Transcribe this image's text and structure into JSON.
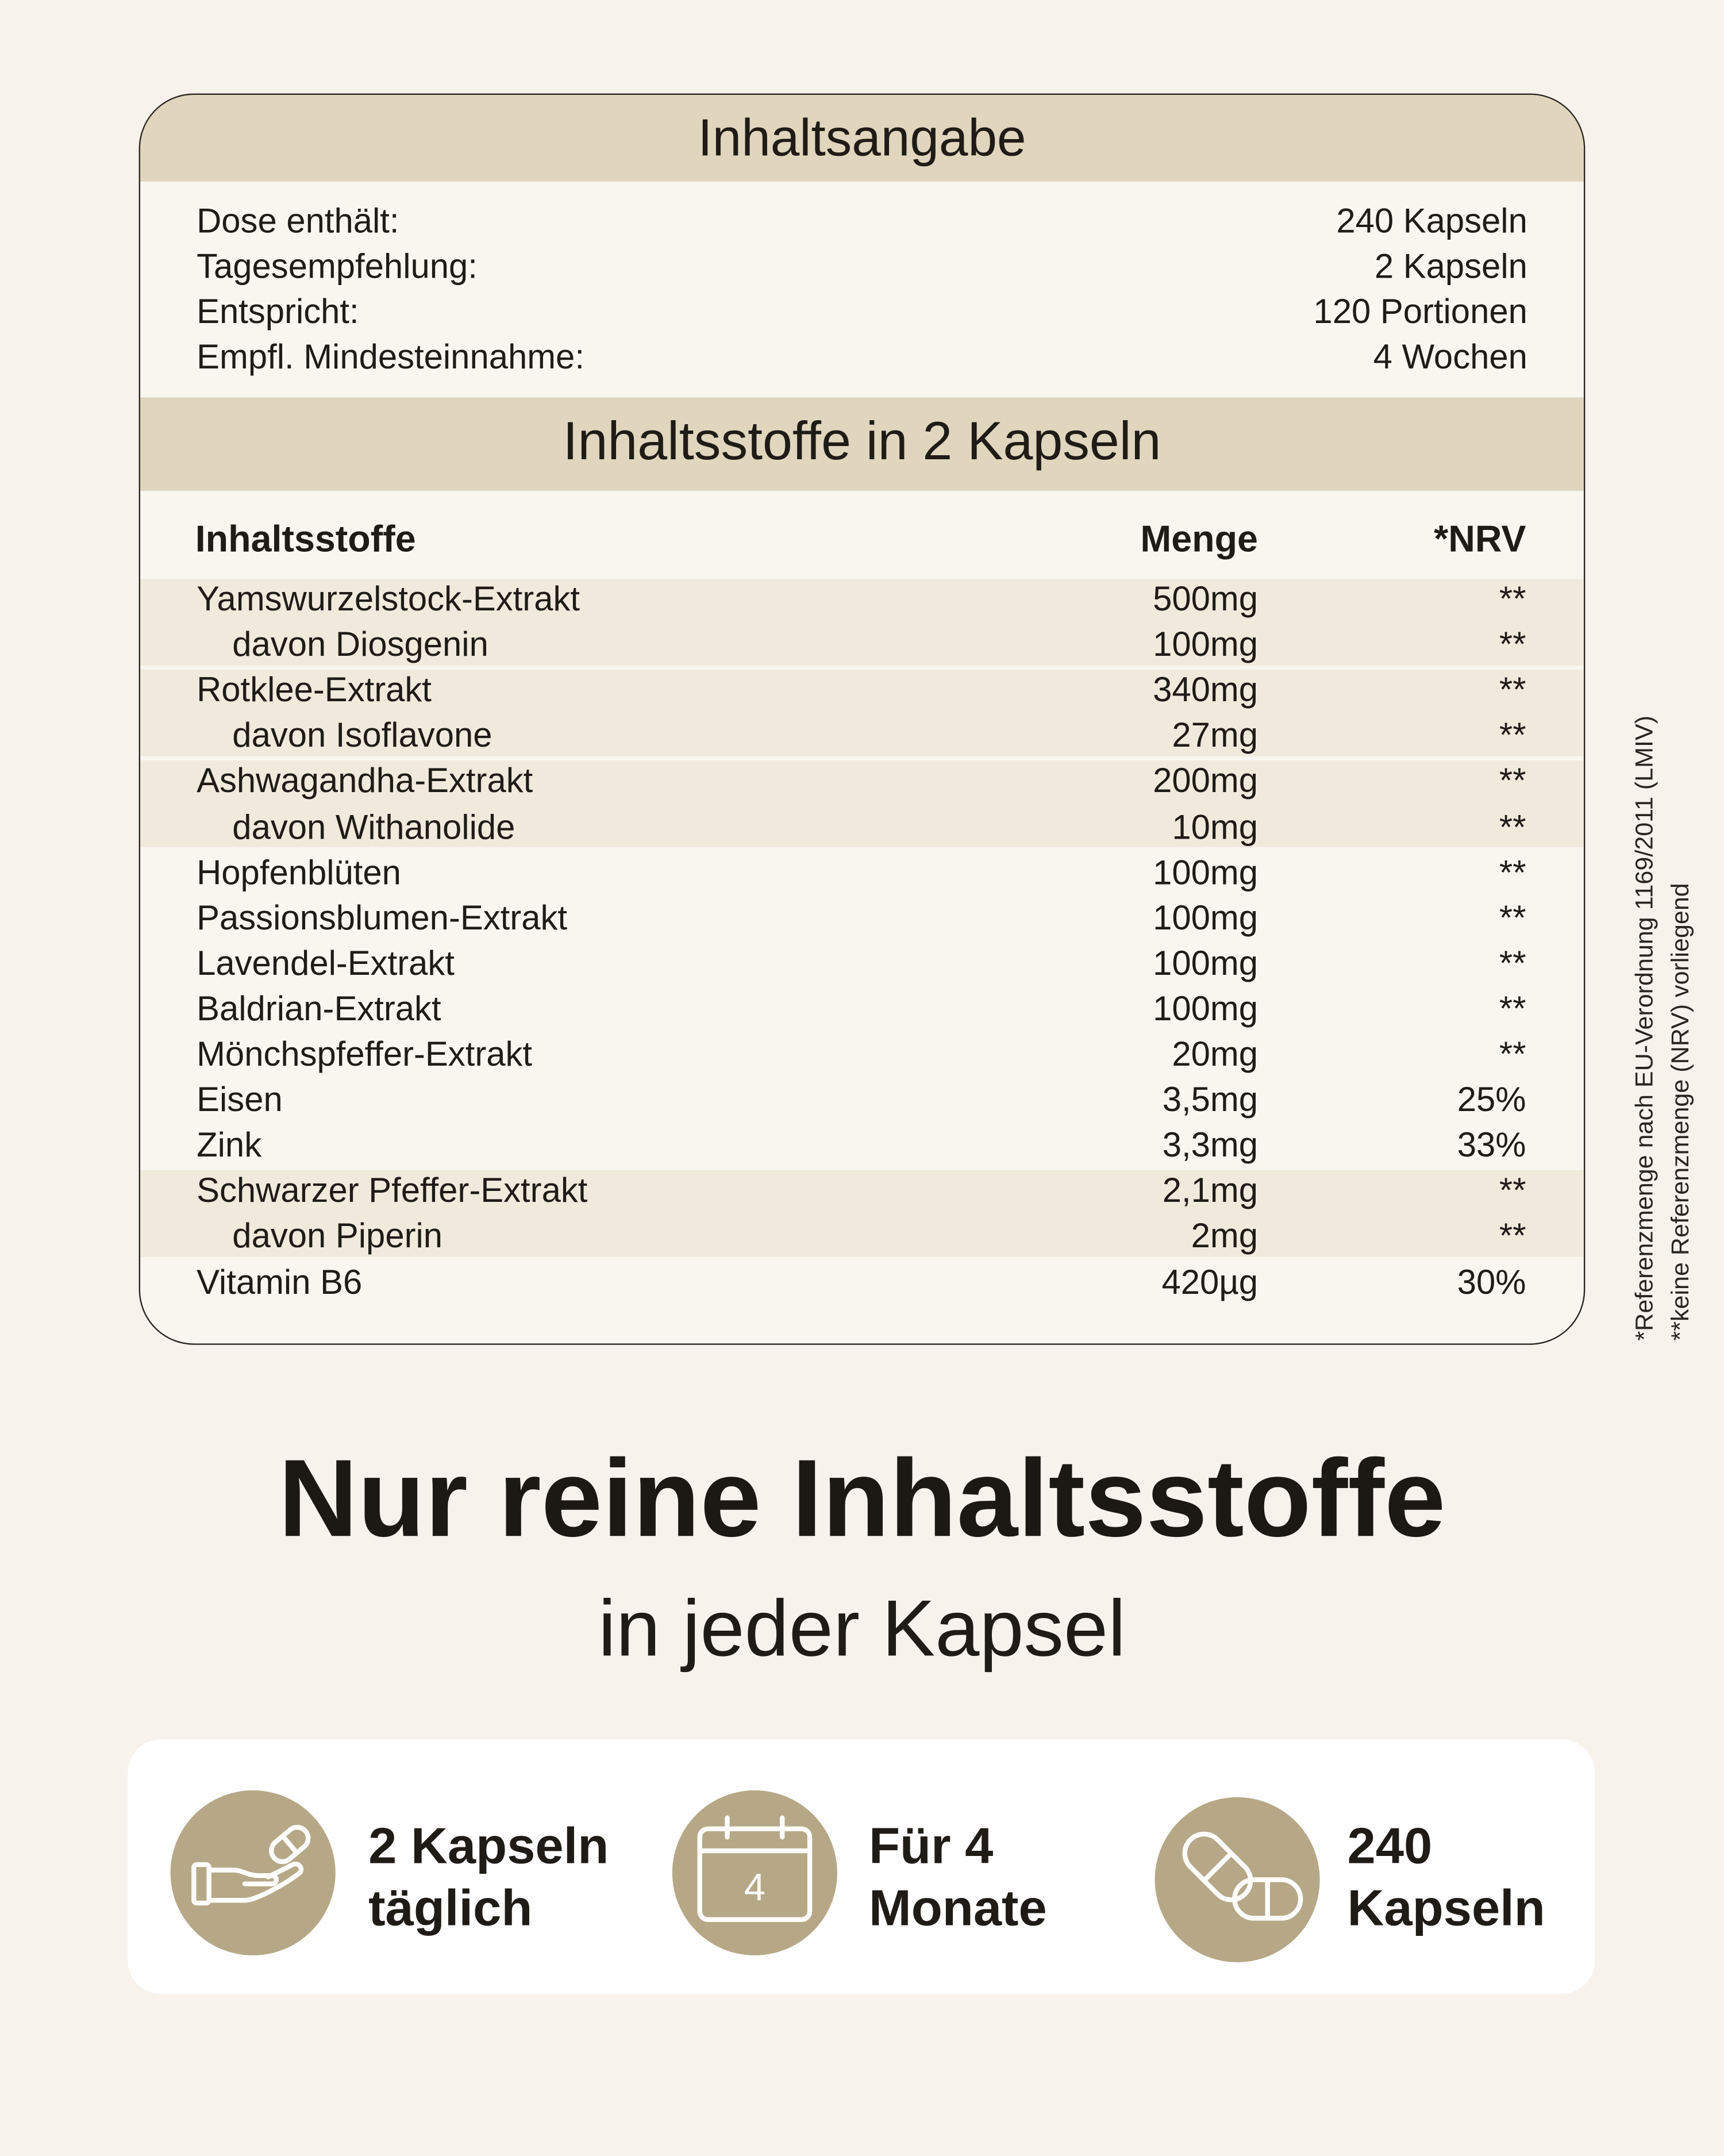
{
  "header": {
    "title": "Inhaltsangabe"
  },
  "summary": [
    {
      "label": "Dose enthält:",
      "value": "240 Kapseln"
    },
    {
      "label": "Tagesempfehlung:",
      "value": "2 Kapseln"
    },
    {
      "label": "Entspricht:",
      "value": "120 Portionen"
    },
    {
      "label": "Empfl. Mindesteinnahme:",
      "value": "4 Wochen"
    }
  ],
  "table": {
    "title": "Inhaltsstoffe in 2 Kapseln",
    "columns": [
      "Inhaltsstoffe",
      "Menge",
      "*NRV"
    ],
    "rows": [
      {
        "name": "Yamswurzelstock-Extrakt",
        "amount": "500mg",
        "nrv": "**",
        "sub": {
          "name": "davon Diosgenin",
          "amount": "100mg",
          "nrv": "**"
        }
      },
      {
        "name": "Rotklee-Extrakt",
        "amount": "340mg",
        "nrv": "**",
        "sub": {
          "name": "davon Isoflavone",
          "amount": "27mg",
          "nrv": "**"
        }
      },
      {
        "name": "Ashwagandha-Extrakt",
        "amount": "200mg",
        "nrv": "**",
        "sub": {
          "name": "davon Withanolide",
          "amount": "10mg",
          "nrv": "**"
        }
      },
      {
        "name": "Hopfenblüten",
        "amount": "100mg",
        "nrv": "**"
      },
      {
        "name": "Passionsblumen-Extrakt",
        "amount": "100mg",
        "nrv": "**"
      },
      {
        "name": "Lavendel-Extrakt",
        "amount": "100mg",
        "nrv": "**"
      },
      {
        "name": "Baldrian-Extrakt",
        "amount": "100mg",
        "nrv": "**"
      },
      {
        "name": "Mönchspfeffer-Extrakt",
        "amount": "20mg",
        "nrv": "**"
      },
      {
        "name": "Eisen",
        "amount": "3,5mg",
        "nrv": "25%"
      },
      {
        "name": "Zink",
        "amount": "3,3mg",
        "nrv": "33%"
      },
      {
        "name": "Schwarzer Pfeffer-Extrakt",
        "amount": "2,1mg",
        "nrv": "**",
        "sub": {
          "name": "davon Piperin",
          "amount": "2mg",
          "nrv": "**"
        }
      },
      {
        "name": "Vitamin B6",
        "amount": "420µg",
        "nrv": "30%"
      }
    ]
  },
  "footnotes": [
    "*Referenzmenge nach EU-Verordnung 1169/2011 (LMIV)",
    "**keine Referenzmenge (NRV) vorliegend"
  ],
  "headline": "Nur reine Inhaltsstoffe",
  "subheadline": "in jeder Kapsel",
  "features": [
    {
      "lines": [
        "2 Kapseln",
        "täglich"
      ]
    },
    {
      "lines": [
        "Für 4",
        "Monate"
      ],
      "icon_text": "4"
    },
    {
      "lines": [
        "240",
        "Kapseln"
      ]
    }
  ]
}
